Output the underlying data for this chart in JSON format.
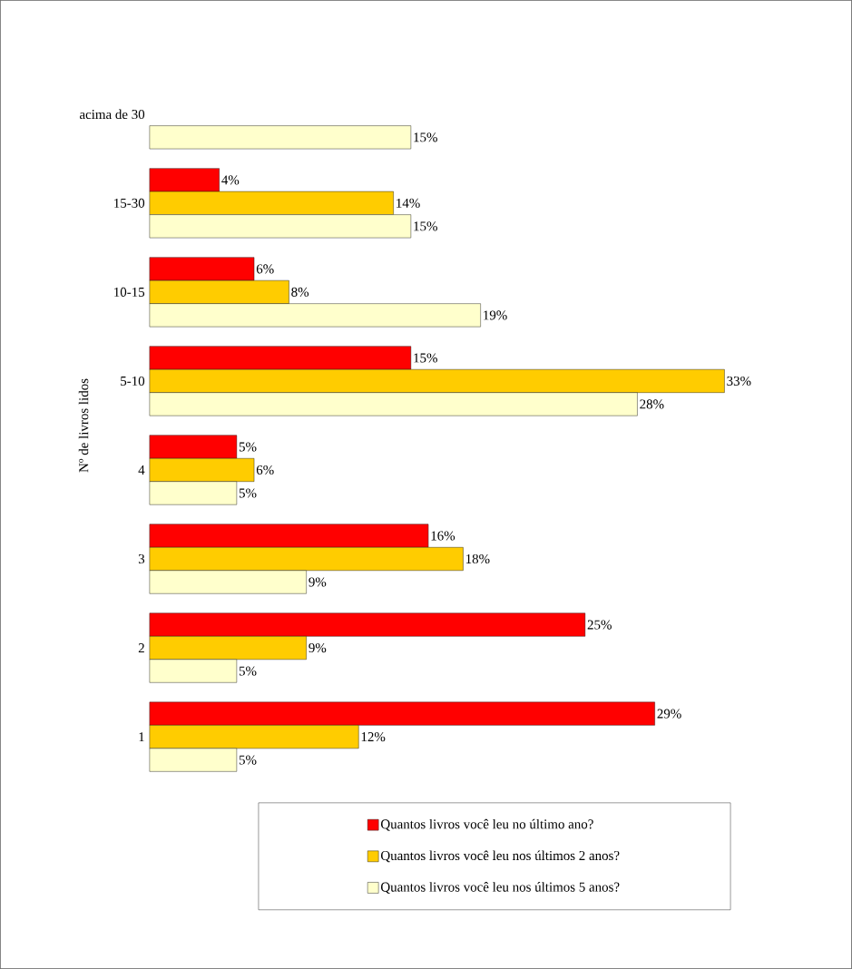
{
  "chart_data": {
    "type": "bar",
    "orientation": "horizontal",
    "ylabel": "Nº de livros lidos",
    "categories": [
      "acima de 30",
      "15-30",
      "10-15",
      "5-10",
      "4",
      "3",
      "2",
      "1"
    ],
    "series": [
      {
        "name": "Quantos livros você leu no último ano?",
        "color": "#ff0000",
        "values": [
          null,
          4,
          6,
          15,
          5,
          16,
          25,
          29
        ],
        "value_labels": [
          null,
          "4%",
          "6%",
          "15%",
          "5%",
          "16%",
          "25%",
          "29%"
        ]
      },
      {
        "name": "Quantos livros você leu nos últimos 2 anos?",
        "color": "#ffcc00",
        "values": [
          null,
          14,
          8,
          33,
          6,
          18,
          9,
          12
        ],
        "value_labels": [
          null,
          "14%",
          "8%",
          "33%",
          "6%",
          "18%",
          "9%",
          "12%"
        ]
      },
      {
        "name": "Quantos livros você leu nos últimos 5 anos?",
        "color": "#ffffcc",
        "values": [
          15,
          15,
          19,
          28,
          5,
          9,
          5,
          5
        ],
        "value_labels": [
          "15%",
          "15%",
          "19%",
          "28%",
          "5%",
          "9%",
          "5%",
          "5%"
        ]
      }
    ],
    "legend": "bottom"
  }
}
